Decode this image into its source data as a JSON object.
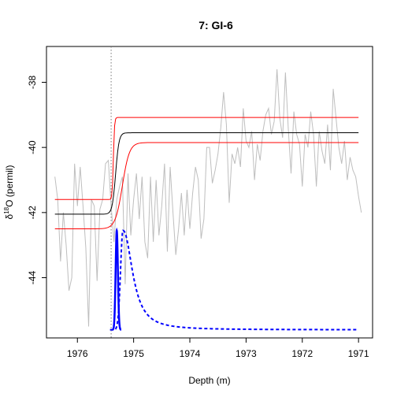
{
  "chart_data": {
    "type": "line",
    "title": "7: GI-6",
    "xlabel": "Depth (m)",
    "ylabel": "δ18O (permil)",
    "ylabel_parts": {
      "prefix": "δ",
      "sup": "18",
      "suffix": "O (permil)"
    },
    "xlim": [
      1976.55,
      1970.75
    ],
    "ylim": [
      -45.85,
      -36.9
    ],
    "x_reversed": true,
    "x_ticks": [
      1976,
      1975,
      1974,
      1973,
      1972,
      1971
    ],
    "x_tick_labels": [
      "1976",
      "1975",
      "1974",
      "1973",
      "1972",
      "1971"
    ],
    "y_ticks": [
      -44,
      -42,
      -40,
      -38
    ],
    "y_tick_labels": [
      "-44",
      "-42",
      "-40",
      "-38"
    ],
    "grid": false,
    "legend": "none",
    "vline": {
      "x": 1975.4,
      "style": "dotted",
      "color": "#777777"
    },
    "series": [
      {
        "role": "raw-data",
        "color": "#bebebe",
        "x": [
          1976.4,
          1976.35,
          1976.3,
          1976.25,
          1976.2,
          1976.15,
          1976.1,
          1976.05,
          1976.0,
          1975.95,
          1975.9,
          1975.85,
          1975.8,
          1975.75,
          1975.7,
          1975.65,
          1975.6,
          1975.55,
          1975.5,
          1975.45,
          1975.4,
          1975.35,
          1975.3,
          1975.25,
          1975.2,
          1975.15,
          1975.1,
          1975.05,
          1975.0,
          1974.95,
          1974.9,
          1974.85,
          1974.8,
          1974.75,
          1974.7,
          1974.65,
          1974.6,
          1974.55,
          1974.5,
          1974.45,
          1974.4,
          1974.35,
          1974.3,
          1974.25,
          1974.2,
          1974.15,
          1974.1,
          1974.05,
          1974.0,
          1973.95,
          1973.9,
          1973.85,
          1973.8,
          1973.75,
          1973.7,
          1973.65,
          1973.6,
          1973.55,
          1973.5,
          1973.45,
          1973.4,
          1973.35,
          1973.3,
          1973.25,
          1973.2,
          1973.15,
          1973.1,
          1973.05,
          1973.0,
          1972.95,
          1972.9,
          1972.85,
          1972.8,
          1972.75,
          1972.7,
          1972.65,
          1972.6,
          1972.55,
          1972.5,
          1972.45,
          1972.4,
          1972.35,
          1972.3,
          1972.25,
          1972.2,
          1972.15,
          1972.1,
          1972.05,
          1972.0,
          1971.95,
          1971.9,
          1971.85,
          1971.8,
          1971.75,
          1971.7,
          1971.65,
          1971.6,
          1971.55,
          1971.5,
          1971.45,
          1971.4,
          1971.35,
          1971.3,
          1971.25,
          1971.2,
          1971.15,
          1971.1,
          1971.05,
          1971.0,
          1970.95
        ],
        "y": [
          -40.9,
          -41.6,
          -43.5,
          -42.0,
          -43.0,
          -44.4,
          -44.0,
          -40.5,
          -41.8,
          -40.6,
          -41.8,
          -43.1,
          -45.5,
          -41.6,
          -41.8,
          -44.1,
          -41.9,
          -41.6,
          -40.5,
          -40.4,
          -41.8,
          -42.9,
          -41.6,
          -41.2,
          -40.9,
          -44.2,
          -40.8,
          -42.7,
          -41.6,
          -40.8,
          -42.2,
          -40.9,
          -42.9,
          -43.4,
          -40.9,
          -42.9,
          -41.0,
          -42.7,
          -41.8,
          -40.5,
          -43.2,
          -40.6,
          -42.0,
          -43.3,
          -42.5,
          -41.4,
          -42.7,
          -41.3,
          -42.5,
          -41.4,
          -40.6,
          -41.0,
          -42.8,
          -42.2,
          -40.0,
          -40.0,
          -41.1,
          -40.7,
          -40.2,
          -39.4,
          -38.3,
          -39.3,
          -41.7,
          -40.2,
          -40.5,
          -40.0,
          -40.6,
          -38.8,
          -39.8,
          -40.0,
          -39.5,
          -41.0,
          -39.9,
          -40.4,
          -39.5,
          -39.0,
          -38.8,
          -39.6,
          -39.2,
          -37.6,
          -39.1,
          -39.7,
          -37.7,
          -39.4,
          -40.8,
          -38.9,
          -39.6,
          -39.9,
          -41.2,
          -39.6,
          -40.0,
          -38.9,
          -39.6,
          -41.2,
          -39.5,
          -40.1,
          -40.5,
          -39.3,
          -40.7,
          -38.2,
          -39.1,
          -40.0,
          -40.5,
          -39.8,
          -41.0,
          -40.3,
          -40.7,
          -40.9,
          -41.5,
          -42.0
        ],
        "y_continued_note": ""
      },
      {
        "role": "fit-mean",
        "color": "#000000",
        "params": {
          "t0": 1975.32,
          "width": 0.12,
          "y_before": -42.05,
          "y_after": -39.55
        }
      },
      {
        "role": "fit-upper",
        "color": "#ff0000",
        "params": {
          "t0": 1975.36,
          "width": 0.04,
          "y_before": -41.6,
          "y_after": -39.08
        }
      },
      {
        "role": "fit-lower",
        "color": "#ff0000",
        "params": {
          "t0": 1975.2,
          "width": 0.25,
          "y_before": -42.5,
          "y_after": -39.85
        }
      },
      {
        "role": "onset-density-solid",
        "color": "#0000ff",
        "params": {
          "peak_x": 1975.3,
          "peak_y": -42.55,
          "base_y": -45.6,
          "sigma": 0.02
        }
      },
      {
        "role": "onset-density-dashed",
        "color": "#0000ff",
        "params": {
          "peak_x": 1975.19,
          "peak_y": -42.55,
          "base_y": -45.6,
          "rise": 0.06,
          "decay": 0.2
        }
      }
    ]
  }
}
